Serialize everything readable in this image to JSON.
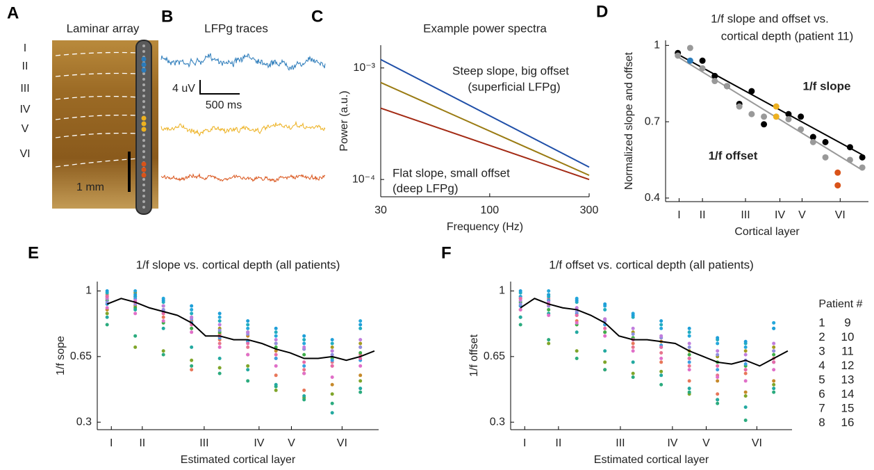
{
  "panel_a": {
    "label": "A",
    "title": "Laminar array",
    "layers": [
      "I",
      "II",
      "III",
      "IV",
      "V",
      "VI"
    ],
    "scale": "1 mm"
  },
  "panel_b": {
    "label": "B",
    "title": "LFPg traces",
    "scale_y": "4 uV",
    "scale_x": "500 ms",
    "traces": [
      {
        "color": "#2b7bba"
      },
      {
        "color": "#edb120"
      },
      {
        "color": "#d95319"
      }
    ]
  },
  "chart_data": [
    {
      "type": "line",
      "label": "C",
      "title": "Example power spectra",
      "xlabel": "Frequency (Hz)",
      "ylabel": "Power (a.u.)",
      "log_x": true,
      "log_y": true,
      "xlim": [
        30,
        300
      ],
      "ylim": [
        7e-05,
        0.0016
      ],
      "xticks": [
        30,
        100,
        300
      ],
      "yticks": [
        {
          "value": 0.0001,
          "label": "10⁻⁴"
        },
        {
          "value": 0.001,
          "label": "10⁻³"
        }
      ],
      "x": [
        30,
        300
      ],
      "series": [
        {
          "color": "#1f4fa8",
          "values": [
            0.00119,
            0.000129
          ]
        },
        {
          "color": "#9a7b12",
          "values": [
            0.00074,
            0.000109
          ]
        },
        {
          "color": "#a32a14",
          "values": [
            0.000436,
            0.0001
          ]
        }
      ],
      "annotations": [
        {
          "text": "Steep slope, big offset",
          "color": "#2b7bba"
        },
        {
          "text": "(superficial LFPg)",
          "color": "#2b7bba"
        },
        {
          "text": "Flat slope, small offset",
          "color": "#d95319"
        },
        {
          "text": "(deep LFPg)",
          "color": "#d95319"
        }
      ]
    },
    {
      "type": "scatter",
      "label": "D",
      "title": [
        "1/f slope and offset vs.",
        "cortical depth (patient 11)"
      ],
      "xlabel": "Cortical layer",
      "ylabel": "Normalized slope and offset",
      "xlim": [
        0,
        16.5
      ],
      "ylim": [
        0.386,
        1.02
      ],
      "yticks": [
        0.4,
        0.7,
        1
      ],
      "xticks": [
        {
          "value": 1.1,
          "label": "I"
        },
        {
          "value": 3,
          "label": "II"
        },
        {
          "value": 6.5,
          "label": "III"
        },
        {
          "value": 9.3,
          "label": "IV"
        },
        {
          "value": 11.1,
          "label": "V"
        },
        {
          "value": 14.2,
          "label": "VI"
        }
      ],
      "x": [
        1,
        2,
        3,
        4,
        5,
        6,
        7,
        8,
        9,
        10,
        11,
        12,
        13,
        14,
        15,
        16
      ],
      "series": [
        {
          "mode": "markers",
          "color": "#000000",
          "values": [
            0.97,
            0.94,
            0.94,
            0.88,
            0.84,
            0.77,
            0.82,
            0.69,
            0.76,
            0.73,
            0.72,
            0.64,
            0.62,
            0.5,
            0.6,
            0.56
          ],
          "colors": [
            "#000000",
            "#2b7bba",
            "#000000",
            "#000000",
            "#000000",
            "#000000",
            "#000000",
            "#000000",
            "#edb120",
            "#000000",
            "#000000",
            "#000000",
            "#000000",
            "#d95319",
            "#000000",
            "#000000"
          ]
        },
        {
          "mode": "markers",
          "color": "#999999",
          "values": [
            0.96,
            0.99,
            0.91,
            0.86,
            0.84,
            0.76,
            0.73,
            0.72,
            0.72,
            0.71,
            0.67,
            0.62,
            0.56,
            0.45,
            0.55,
            0.52
          ],
          "colors": [
            "#999999",
            "#999999",
            "#999999",
            "#999999",
            "#999999",
            "#999999",
            "#999999",
            "#999999",
            "#edb120",
            "#999999",
            "#999999",
            "#999999",
            "#999999",
            "#d95319",
            "#999999",
            "#999999"
          ]
        },
        {
          "mode": "line",
          "color": "#000000",
          "x": [
            1,
            16
          ],
          "values": [
            0.965,
            0.57
          ]
        },
        {
          "mode": "line",
          "color": "#999999",
          "x": [
            1,
            16
          ],
          "values": [
            0.955,
            0.51
          ]
        }
      ],
      "annotations": [
        {
          "text": "1/f slope",
          "color": "#000000"
        },
        {
          "text": "1/f offset",
          "color": "#aaaaaa"
        }
      ]
    },
    {
      "type": "scatter",
      "label": "E",
      "title": "1/f slope vs. cortical depth (all patients)",
      "xlabel": "Estimated cortical layer",
      "ylabel": "1/f sope",
      "xlim": [
        0.3,
        20.3
      ],
      "ylim": [
        0.26,
        1.05
      ],
      "yticks": [
        0.3,
        0.65,
        1
      ],
      "xticks": [
        {
          "value": 1.3,
          "label": "I"
        },
        {
          "value": 3.5,
          "label": "II"
        },
        {
          "value": 7.9,
          "label": "III"
        },
        {
          "value": 11.8,
          "label": "IV"
        },
        {
          "value": 14.1,
          "label": "V"
        },
        {
          "value": 17.7,
          "label": "VI"
        }
      ],
      "x": [
        1,
        3,
        5,
        7,
        9,
        11,
        13,
        15,
        17,
        19
      ],
      "series": [
        {
          "mode": "markers",
          "color": "#e7748c",
          "values": [
            0.93,
            0.97,
            0.9,
            0.8,
            0.72,
            0.7,
            0.64,
            0.58,
            0.62,
            0.66
          ]
        },
        {
          "mode": "markers",
          "color": "#e8775a",
          "values": [
            0.98,
            0.95,
            0.86,
            0.58,
            0.74,
            0.66,
            0.55,
            0.47,
            0.6,
            0.7
          ]
        },
        {
          "mode": "markers",
          "color": "#c6892a",
          "values": [
            0.9,
            0.92,
            0.88,
            0.84,
            0.77,
            0.76,
            0.68,
            0.56,
            0.5,
            0.55
          ]
        },
        {
          "mode": "markers",
          "color": "#a59a21",
          "values": [
            0.96,
            0.99,
            0.92,
            0.86,
            0.8,
            0.78,
            0.72,
            0.69,
            0.7,
            0.72
          ]
        },
        {
          "mode": "markers",
          "color": "#7fa52a",
          "values": [
            0.88,
            0.7,
            0.68,
            0.63,
            0.59,
            0.6,
            0.47,
            0.43,
            0.45,
            0.52
          ]
        },
        {
          "mode": "markers",
          "color": "#3fae4a",
          "values": [
            0.95,
            0.91,
            0.83,
            0.8,
            0.78,
            0.73,
            0.7,
            0.66,
            0.64,
            0.67
          ]
        },
        {
          "mode": "markers",
          "color": "#2bab7e",
          "values": [
            0.82,
            0.76,
            0.66,
            0.6,
            0.56,
            0.52,
            0.49,
            0.42,
            0.4,
            0.46
          ]
        },
        {
          "mode": "markers",
          "color": "#23a9a0",
          "values": [
            0.86,
            0.9,
            0.8,
            0.7,
            0.64,
            0.58,
            0.5,
            0.44,
            0.35,
            0.48
          ]
        },
        {
          "mode": "markers",
          "color": "#22adc0",
          "values": [
            0.99,
            0.97,
            0.94,
            0.88,
            0.84,
            0.82,
            0.78,
            0.74,
            0.72,
            0.8
          ]
        },
        {
          "mode": "markers",
          "color": "#25a8db",
          "values": [
            0.97,
            1,
            0.96,
            0.9,
            0.86,
            0.8,
            0.76,
            0.72,
            0.68,
            0.84
          ]
        },
        {
          "mode": "markers",
          "color": "#3a9fe0",
          "values": [
            0.93,
            0.96,
            0.89,
            0.83,
            0.75,
            0.73,
            0.64,
            0.6,
            0.63,
            0.63
          ]
        },
        {
          "mode": "markers",
          "color": "#1f9fd8",
          "values": [
            1,
            0.98,
            0.95,
            0.92,
            0.88,
            0.84,
            0.8,
            0.76,
            0.74,
            0.82
          ]
        },
        {
          "mode": "markers",
          "color": "#8f8fe0",
          "values": [
            0.94,
            0.93,
            0.9,
            0.85,
            0.79,
            0.77,
            0.72,
            0.69,
            0.66,
            0.7
          ]
        },
        {
          "mode": "markers",
          "color": "#c07ddd",
          "values": [
            0.96,
            0.95,
            0.92,
            0.86,
            0.82,
            0.78,
            0.74,
            0.7,
            0.68,
            0.74
          ]
        },
        {
          "mode": "markers",
          "color": "#e06fc8",
          "values": [
            0.91,
            0.88,
            0.84,
            0.78,
            0.7,
            0.66,
            0.6,
            0.56,
            0.54,
            0.6
          ]
        },
        {
          "mode": "markers",
          "color": "#e66aa8",
          "values": [
            0.97,
            0.94,
            0.88,
            0.82,
            0.76,
            0.72,
            0.66,
            0.62,
            0.6,
            0.64
          ]
        },
        {
          "mode": "line",
          "color": "#000000",
          "x": [
            1,
            2,
            3,
            4,
            5,
            6,
            7,
            8,
            9,
            10,
            11,
            12,
            13,
            14,
            15,
            16,
            17,
            18,
            19,
            20
          ],
          "values": [
            0.93,
            0.96,
            0.94,
            0.91,
            0.89,
            0.87,
            0.83,
            0.76,
            0.76,
            0.74,
            0.74,
            0.72,
            0.69,
            0.67,
            0.64,
            0.64,
            0.65,
            0.63,
            0.65,
            0.68
          ]
        }
      ]
    },
    {
      "type": "scatter",
      "label": "F",
      "title": "1/f offset vs. cortical depth (all patients)",
      "xlabel": "Estimated cortical layer",
      "ylabel": "1/f offset",
      "xlim": [
        0.3,
        20.3
      ],
      "ylim": [
        0.26,
        1.05
      ],
      "yticks": [
        0.3,
        0.65,
        1
      ],
      "xticks": [
        {
          "value": 1.3,
          "label": "I"
        },
        {
          "value": 3.7,
          "label": "II"
        },
        {
          "value": 8.1,
          "label": "III"
        },
        {
          "value": 11.8,
          "label": "IV"
        },
        {
          "value": 14.2,
          "label": "V"
        },
        {
          "value": 17.8,
          "label": "VI"
        }
      ],
      "x": [
        1,
        3,
        5,
        7,
        9,
        11,
        13,
        15,
        17,
        19
      ],
      "legend_title": "Patient #",
      "series": [
        {
          "mode": "markers",
          "name": "1",
          "color": "#e7748c",
          "values": [
            0.92,
            0.96,
            0.9,
            0.78,
            0.7,
            0.67,
            0.6,
            0.55,
            0.58,
            0.64
          ]
        },
        {
          "mode": "markers",
          "name": "2",
          "color": "#e8775a",
          "values": [
            0.97,
            0.95,
            0.84,
            0.58,
            0.72,
            0.62,
            0.52,
            0.45,
            0.56,
            0.68
          ]
        },
        {
          "mode": "markers",
          "name": "3",
          "color": "#c6892a",
          "values": [
            0.9,
            0.92,
            0.87,
            0.82,
            0.75,
            0.73,
            0.64,
            0.52,
            0.46,
            0.52
          ]
        },
        {
          "mode": "markers",
          "name": "4",
          "color": "#a59a21",
          "values": [
            0.96,
            0.98,
            0.91,
            0.85,
            0.78,
            0.75,
            0.68,
            0.65,
            0.68,
            0.7
          ]
        },
        {
          "mode": "markers",
          "name": "5",
          "color": "#7fa52a",
          "values": [
            0.86,
            0.72,
            0.68,
            0.62,
            0.56,
            0.57,
            0.45,
            0.42,
            0.44,
            0.5
          ]
        },
        {
          "mode": "markers",
          "name": "6",
          "color": "#3fae4a",
          "values": [
            0.94,
            0.9,
            0.82,
            0.78,
            0.75,
            0.7,
            0.66,
            0.62,
            0.6,
            0.66
          ]
        },
        {
          "mode": "markers",
          "name": "7",
          "color": "#2bab7e",
          "values": [
            0.82,
            0.74,
            0.64,
            0.58,
            0.54,
            0.5,
            0.46,
            0.4,
            0.31,
            0.46
          ]
        },
        {
          "mode": "markers",
          "name": "8",
          "color": "#23a9a0",
          "values": [
            0.86,
            0.88,
            0.78,
            0.68,
            0.62,
            0.55,
            0.48,
            0.42,
            0.38,
            0.48
          ]
        },
        {
          "mode": "markers",
          "name": "9",
          "color": "#22adc0",
          "values": [
            0.99,
            0.97,
            0.94,
            0.9,
            0.86,
            0.82,
            0.78,
            0.74,
            0.72,
            0.8
          ]
        },
        {
          "mode": "markers",
          "name": "10",
          "color": "#25a8db",
          "values": [
            0.97,
            1,
            0.96,
            0.92,
            0.88,
            0.8,
            0.76,
            0.72,
            0.7,
            0.83
          ]
        },
        {
          "mode": "markers",
          "name": "11",
          "color": "#3a9fe0",
          "values": [
            0.92,
            0.95,
            0.88,
            0.82,
            0.74,
            0.71,
            0.62,
            0.58,
            0.61,
            0.62
          ]
        },
        {
          "mode": "markers",
          "name": "12",
          "color": "#1f9fd8",
          "values": [
            1,
            0.98,
            0.95,
            0.93,
            0.87,
            0.84,
            0.8,
            0.75,
            0.73,
            0.8
          ]
        },
        {
          "mode": "markers",
          "name": "13",
          "color": "#8f8fe0",
          "values": [
            0.93,
            0.92,
            0.89,
            0.84,
            0.77,
            0.75,
            0.7,
            0.66,
            0.63,
            0.68
          ]
        },
        {
          "mode": "markers",
          "name": "14",
          "color": "#c07ddd",
          "values": [
            0.95,
            0.94,
            0.91,
            0.85,
            0.8,
            0.76,
            0.72,
            0.68,
            0.66,
            0.72
          ]
        },
        {
          "mode": "markers",
          "name": "15",
          "color": "#e06fc8",
          "values": [
            0.9,
            0.87,
            0.83,
            0.76,
            0.68,
            0.64,
            0.58,
            0.54,
            0.52,
            0.58
          ]
        },
        {
          "mode": "markers",
          "name": "16",
          "color": "#e66aa8",
          "values": [
            0.96,
            0.93,
            0.87,
            0.8,
            0.74,
            0.7,
            0.64,
            0.6,
            0.58,
            0.62
          ]
        },
        {
          "mode": "line",
          "color": "#000000",
          "x": [
            1,
            2,
            3,
            4,
            5,
            6,
            7,
            8,
            9,
            10,
            11,
            12,
            13,
            14,
            15,
            16,
            17,
            18,
            19,
            20
          ],
          "values": [
            0.91,
            0.96,
            0.93,
            0.91,
            0.9,
            0.87,
            0.83,
            0.76,
            0.74,
            0.74,
            0.73,
            0.72,
            0.68,
            0.65,
            0.62,
            0.61,
            0.63,
            0.6,
            0.64,
            0.68
          ]
        }
      ]
    }
  ]
}
